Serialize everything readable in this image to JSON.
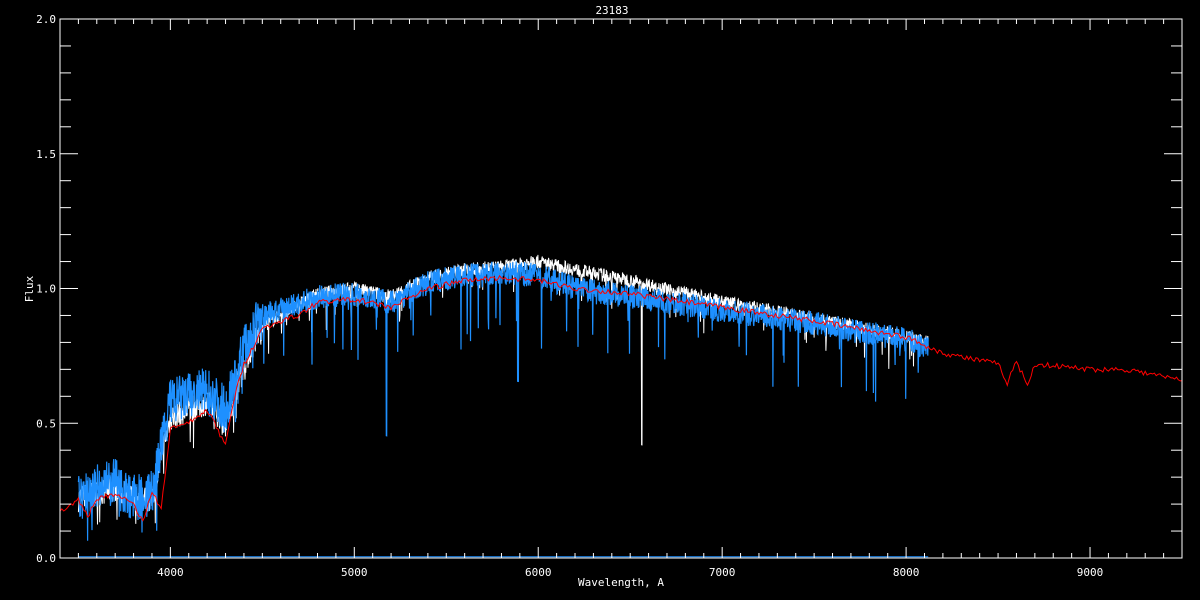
{
  "chart_data": {
    "type": "line",
    "title": "23183",
    "xlabel": "Wavelength, A",
    "ylabel": "Flux",
    "xlim": [
      3400,
      9500
    ],
    "ylim": [
      0.0,
      2.0
    ],
    "xticks": [
      "4000",
      "5000",
      "6000",
      "7000",
      "8000",
      "9000"
    ],
    "yticks": [
      "0.0",
      "0.5",
      "1.0",
      "1.5",
      "2.0"
    ],
    "grid": false,
    "background": "#000000",
    "series": [
      {
        "color": "#ffffff",
        "style": "observed spectrum (white)",
        "x": [
          3500,
          3600,
          3700,
          3800,
          3900,
          4000,
          4100,
          4200,
          4300,
          4400,
          4500,
          4600,
          4800,
          5000,
          5200,
          5400,
          5600,
          5800,
          6000,
          6200,
          6500,
          7000,
          7500,
          8000,
          8120
        ],
        "y": [
          0.22,
          0.24,
          0.26,
          0.22,
          0.22,
          0.52,
          0.55,
          0.58,
          0.5,
          0.72,
          0.86,
          0.9,
          0.98,
          1.0,
          0.97,
          1.04,
          1.07,
          1.08,
          1.1,
          1.07,
          1.03,
          0.95,
          0.89,
          0.82,
          0.8
        ]
      },
      {
        "color": "#1e90ff",
        "style": "observed spectrum (blue)",
        "x": [
          3500,
          3600,
          3700,
          3800,
          3900,
          4000,
          4100,
          4200,
          4300,
          4400,
          4500,
          4600,
          4800,
          5000,
          5200,
          5400,
          5600,
          5800,
          6000,
          6200,
          6500,
          7000,
          7500,
          8000,
          8120
        ],
        "y": [
          0.22,
          0.26,
          0.28,
          0.22,
          0.24,
          0.58,
          0.6,
          0.62,
          0.55,
          0.78,
          0.9,
          0.92,
          0.97,
          0.98,
          0.95,
          1.02,
          1.05,
          1.06,
          1.05,
          1.0,
          0.97,
          0.92,
          0.87,
          0.81,
          0.78
        ]
      },
      {
        "color": "#ff0000",
        "style": "model",
        "x": [
          3400,
          3500,
          3550,
          3600,
          3700,
          3800,
          3850,
          3900,
          3950,
          4000,
          4100,
          4200,
          4300,
          4350,
          4400,
          4500,
          4600,
          4700,
          4800,
          5000,
          5200,
          5400,
          5600,
          5800,
          6000,
          6200,
          6500,
          7000,
          7500,
          8000,
          8200,
          8500,
          8550,
          8600,
          8660,
          8700,
          9000,
          9200,
          9500
        ],
        "y": [
          0.17,
          0.22,
          0.15,
          0.22,
          0.24,
          0.2,
          0.13,
          0.25,
          0.18,
          0.48,
          0.5,
          0.55,
          0.42,
          0.6,
          0.72,
          0.85,
          0.88,
          0.9,
          0.95,
          0.96,
          0.93,
          1.0,
          1.03,
          1.04,
          1.03,
          1.0,
          0.98,
          0.93,
          0.88,
          0.82,
          0.76,
          0.72,
          0.65,
          0.73,
          0.64,
          0.72,
          0.7,
          0.7,
          0.66
        ]
      },
      {
        "color": "#1e90ff",
        "style": "error (near zero)",
        "x": [
          3500,
          8120
        ],
        "y": [
          0.005,
          0.005
        ]
      }
    ]
  }
}
